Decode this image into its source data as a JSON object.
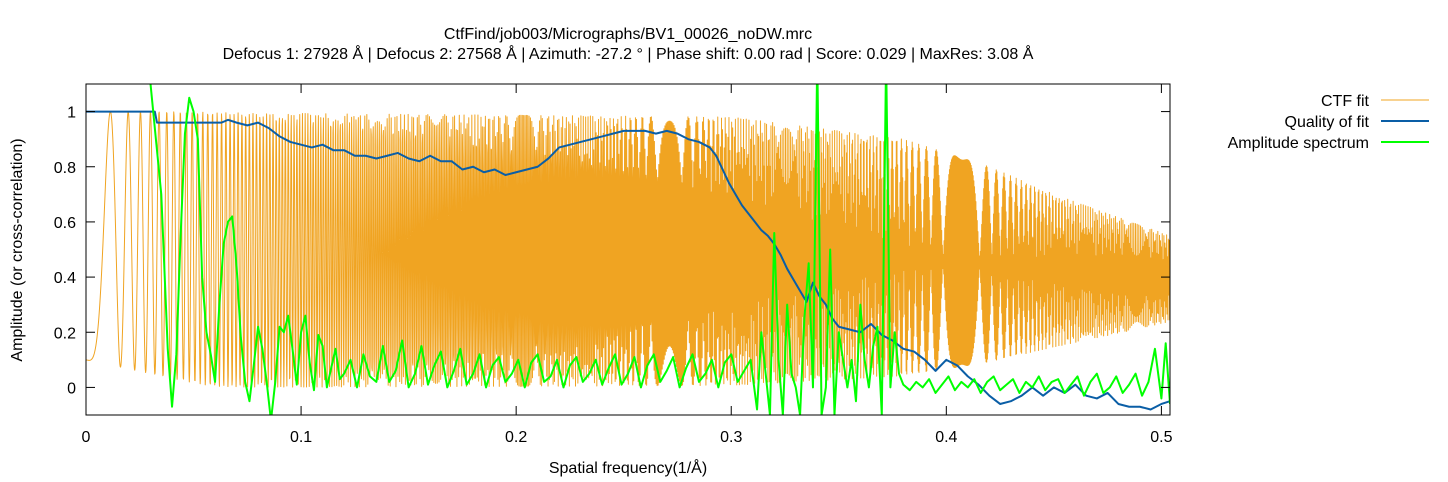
{
  "chart_data": {
    "type": "line",
    "title": "CtfFind/job003/Micrographs/BV1_00026_noDW.mrc",
    "subtitle": "Defocus 1: 27928 Å | Defocus 2: 27568 Å | Azimuth: -27.2 ° | Phase shift: 0.00 rad | Score: 0.029 | MaxRes: 3.08 Å",
    "xlabel": "Spatial frequency(1/Å)",
    "ylabel": "Amplitude (or cross-correlation)",
    "xlim": [
      0,
      0.504
    ],
    "ylim": [
      -0.1,
      1.1
    ],
    "xticks": [
      0,
      0.1,
      0.2,
      0.3,
      0.4,
      0.5
    ],
    "xtick_labels": [
      "0",
      "0.1",
      "0.2",
      "0.3",
      "0.4",
      "0.5"
    ],
    "yticks": [
      0,
      0.2,
      0.4,
      0.6,
      0.8,
      1
    ],
    "ytick_labels": [
      "0",
      "0.2",
      "0.4",
      "0.6",
      "0.8",
      "1"
    ],
    "grid": false,
    "legend": "outside-top-right",
    "ctf_model": {
      "k": 3900,
      "baseline": 0.1,
      "baseline_decay": 0.0015,
      "envelope": [
        [
          0.0,
          1.0
        ],
        [
          0.3,
          0.98
        ],
        [
          0.38,
          0.9
        ],
        [
          0.42,
          0.8
        ],
        [
          0.45,
          0.7
        ],
        [
          0.504,
          0.55
        ]
      ]
    },
    "series": [
      {
        "name": "CTF fit",
        "color": "#f0a422",
        "width": 1,
        "x": [],
        "y": []
      },
      {
        "name": "Quality of fit",
        "color": "#0a5ea6",
        "width": 2,
        "x": [
          0.0,
          0.032,
          0.033,
          0.063,
          0.066,
          0.07,
          0.075,
          0.08,
          0.085,
          0.09,
          0.095,
          0.1,
          0.105,
          0.11,
          0.115,
          0.12,
          0.125,
          0.13,
          0.135,
          0.14,
          0.145,
          0.15,
          0.155,
          0.16,
          0.165,
          0.17,
          0.175,
          0.18,
          0.185,
          0.19,
          0.195,
          0.2,
          0.205,
          0.21,
          0.215,
          0.22,
          0.225,
          0.23,
          0.235,
          0.24,
          0.245,
          0.25,
          0.255,
          0.26,
          0.265,
          0.27,
          0.275,
          0.28,
          0.285,
          0.29,
          0.293,
          0.296,
          0.299,
          0.302,
          0.305,
          0.308,
          0.311,
          0.314,
          0.317,
          0.32,
          0.323,
          0.326,
          0.329,
          0.332,
          0.335,
          0.338,
          0.341,
          0.344,
          0.347,
          0.35,
          0.355,
          0.36,
          0.365,
          0.37,
          0.375,
          0.38,
          0.385,
          0.39,
          0.395,
          0.4,
          0.405,
          0.41,
          0.415,
          0.42,
          0.425,
          0.43,
          0.435,
          0.44,
          0.445,
          0.45,
          0.455,
          0.46,
          0.465,
          0.47,
          0.475,
          0.48,
          0.485,
          0.49,
          0.495,
          0.5,
          0.504
        ],
        "y": [
          1.0,
          1.0,
          0.96,
          0.96,
          0.97,
          0.96,
          0.95,
          0.96,
          0.94,
          0.91,
          0.89,
          0.88,
          0.87,
          0.88,
          0.86,
          0.86,
          0.84,
          0.84,
          0.83,
          0.84,
          0.85,
          0.83,
          0.82,
          0.84,
          0.82,
          0.82,
          0.79,
          0.8,
          0.78,
          0.79,
          0.77,
          0.78,
          0.79,
          0.8,
          0.83,
          0.87,
          0.88,
          0.89,
          0.9,
          0.91,
          0.92,
          0.93,
          0.93,
          0.93,
          0.92,
          0.93,
          0.92,
          0.9,
          0.89,
          0.87,
          0.84,
          0.79,
          0.74,
          0.7,
          0.66,
          0.63,
          0.6,
          0.57,
          0.55,
          0.52,
          0.48,
          0.43,
          0.39,
          0.35,
          0.31,
          0.38,
          0.33,
          0.3,
          0.25,
          0.22,
          0.21,
          0.2,
          0.23,
          0.19,
          0.17,
          0.14,
          0.13,
          0.1,
          0.06,
          0.1,
          0.08,
          0.04,
          0.01,
          -0.03,
          -0.06,
          -0.05,
          -0.03,
          0.0,
          -0.03,
          0.0,
          -0.02,
          0.01,
          -0.03,
          -0.04,
          -0.02,
          -0.06,
          -0.07,
          -0.07,
          -0.08,
          -0.06,
          -0.05
        ]
      },
      {
        "name": "Amplitude spectrum",
        "color": "#00ff00",
        "width": 2,
        "x": [
          0.0276,
          0.03,
          0.035,
          0.038,
          0.04,
          0.042,
          0.044,
          0.046,
          0.048,
          0.05,
          0.052,
          0.054,
          0.056,
          0.058,
          0.06,
          0.062,
          0.064,
          0.066,
          0.068,
          0.07,
          0.072,
          0.074,
          0.076,
          0.078,
          0.08,
          0.082,
          0.084,
          0.086,
          0.088,
          0.09,
          0.092,
          0.094,
          0.096,
          0.098,
          0.1,
          0.102,
          0.104,
          0.106,
          0.108,
          0.11,
          0.112,
          0.114,
          0.116,
          0.118,
          0.12,
          0.123,
          0.126,
          0.129,
          0.132,
          0.135,
          0.138,
          0.141,
          0.144,
          0.147,
          0.15,
          0.153,
          0.156,
          0.159,
          0.162,
          0.165,
          0.168,
          0.171,
          0.174,
          0.177,
          0.18,
          0.183,
          0.186,
          0.189,
          0.192,
          0.195,
          0.198,
          0.201,
          0.204,
          0.207,
          0.21,
          0.213,
          0.216,
          0.219,
          0.222,
          0.225,
          0.228,
          0.231,
          0.234,
          0.237,
          0.24,
          0.243,
          0.246,
          0.249,
          0.252,
          0.255,
          0.258,
          0.261,
          0.264,
          0.267,
          0.27,
          0.273,
          0.276,
          0.279,
          0.282,
          0.285,
          0.288,
          0.291,
          0.294,
          0.297,
          0.3,
          0.303,
          0.306,
          0.309,
          0.312,
          0.314,
          0.316,
          0.318,
          0.32,
          0.322,
          0.324,
          0.326,
          0.328,
          0.33,
          0.332,
          0.334,
          0.336,
          0.338,
          0.34,
          0.342,
          0.344,
          0.346,
          0.348,
          0.35,
          0.352,
          0.354,
          0.356,
          0.358,
          0.36,
          0.362,
          0.364,
          0.366,
          0.368,
          0.37,
          0.372,
          0.374,
          0.376,
          0.378,
          0.38,
          0.383,
          0.386,
          0.389,
          0.392,
          0.395,
          0.398,
          0.401,
          0.404,
          0.407,
          0.41,
          0.413,
          0.416,
          0.419,
          0.422,
          0.425,
          0.428,
          0.431,
          0.434,
          0.437,
          0.44,
          0.443,
          0.446,
          0.449,
          0.452,
          0.455,
          0.458,
          0.461,
          0.464,
          0.467,
          0.47,
          0.473,
          0.476,
          0.479,
          0.482,
          0.485,
          0.488,
          0.491,
          0.494,
          0.497,
          0.5,
          0.502,
          0.504
        ],
        "y": [
          1.12,
          1.1,
          0.7,
          0.14,
          -0.07,
          0.12,
          0.55,
          0.92,
          1.05,
          1.0,
          0.9,
          0.4,
          0.2,
          0.12,
          0.02,
          0.3,
          0.52,
          0.6,
          0.62,
          0.44,
          0.18,
          0.02,
          -0.05,
          0.08,
          0.22,
          0.14,
          0.02,
          -0.12,
          0.02,
          0.22,
          0.2,
          0.26,
          0.14,
          0.01,
          0.2,
          0.26,
          0.09,
          -0.01,
          0.19,
          0.15,
          0.0,
          0.07,
          0.14,
          0.03,
          0.05,
          0.1,
          0.0,
          0.12,
          0.04,
          0.02,
          0.15,
          0.02,
          0.06,
          0.17,
          0.0,
          0.05,
          0.15,
          0.01,
          0.08,
          0.13,
          0.0,
          0.06,
          0.14,
          0.01,
          0.05,
          0.12,
          0.0,
          0.08,
          0.11,
          0.02,
          0.05,
          0.1,
          0.0,
          0.09,
          0.12,
          0.02,
          0.04,
          0.1,
          0.0,
          0.08,
          0.11,
          0.02,
          0.05,
          0.1,
          0.01,
          0.07,
          0.12,
          0.01,
          0.05,
          0.11,
          0.0,
          0.08,
          0.12,
          0.02,
          0.06,
          0.11,
          0.0,
          0.07,
          0.12,
          0.02,
          0.05,
          0.1,
          0.0,
          0.09,
          0.12,
          0.02,
          0.06,
          0.1,
          -0.08,
          0.2,
          0.05,
          -0.1,
          0.56,
          0.1,
          -0.1,
          0.3,
          0.05,
          0.0,
          -0.1,
          0.25,
          0.45,
          0.0,
          1.2,
          -0.1,
          0.0,
          0.5,
          -0.1,
          0.2,
          0.1,
          0.0,
          0.1,
          -0.05,
          0.3,
          0.1,
          0.0,
          0.15,
          0.22,
          -0.1,
          1.2,
          0.0,
          0.2,
          0.05,
          0.01,
          -0.01,
          0.02,
          0.0,
          0.03,
          -0.02,
          0.01,
          0.04,
          -0.01,
          0.02,
          0.0,
          0.03,
          -0.02,
          0.02,
          0.04,
          -0.01,
          0.01,
          0.03,
          -0.02,
          0.02,
          0.0,
          0.04,
          -0.01,
          0.02,
          0.03,
          -0.02,
          0.01,
          0.04,
          -0.03,
          0.02,
          0.05,
          -0.02,
          0.0,
          0.04,
          -0.02,
          0.01,
          0.05,
          -0.03,
          0.02,
          0.14,
          -0.04,
          0.16,
          -0.06
        ]
      }
    ]
  }
}
